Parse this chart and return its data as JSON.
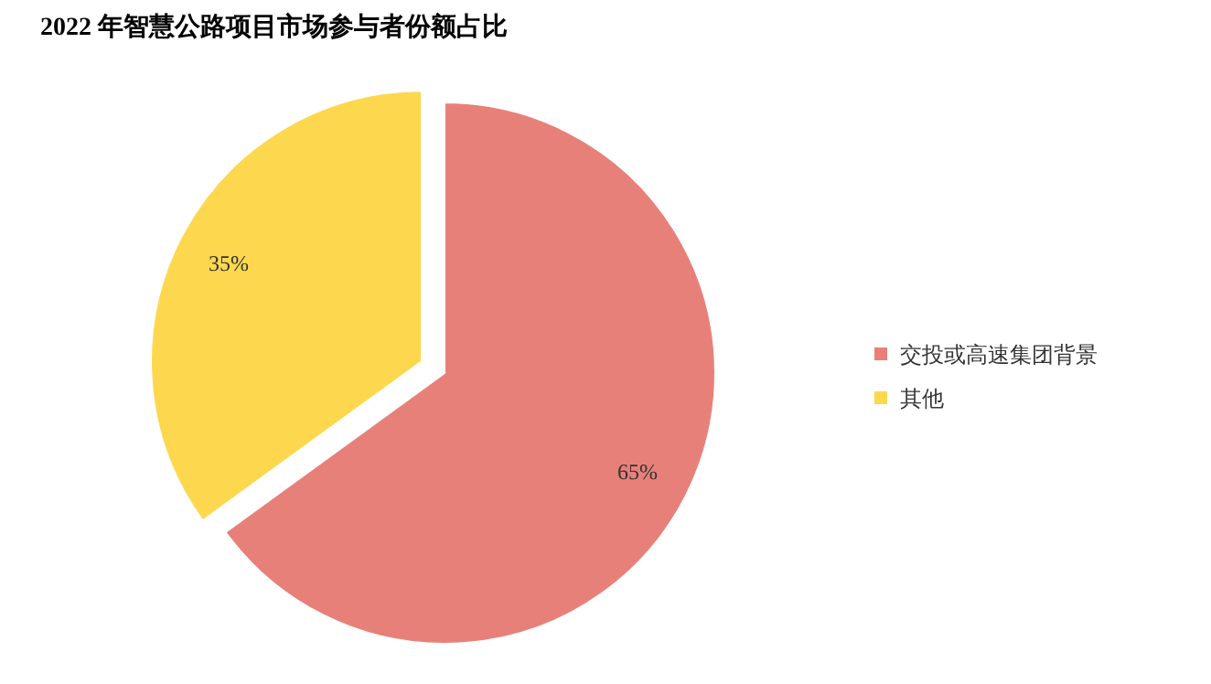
{
  "chart_data": {
    "type": "pie",
    "title": "2022 年智慧公路项目市场参与者份额占比",
    "categories": [
      "交投或高速集团背景",
      "其他"
    ],
    "values": [
      65,
      35
    ],
    "value_labels": [
      "65%",
      "35%"
    ],
    "colors": [
      "#e8807a",
      "#fdd84f"
    ],
    "legend": "right"
  }
}
